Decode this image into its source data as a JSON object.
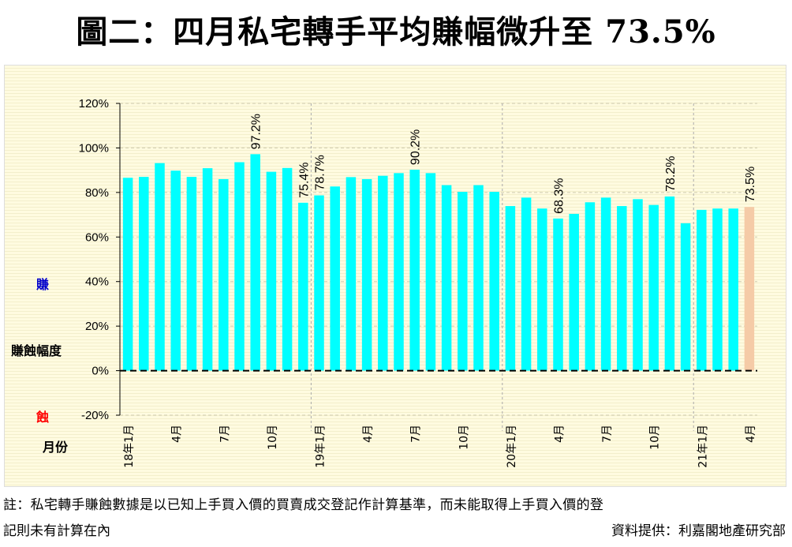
{
  "title": "圖二：四月私宅轉手平均賺幅微升至 73.5%",
  "side_labels": {
    "gain": "賺",
    "axis_title": "賺蝕幅度",
    "loss": "蝕",
    "month_label": "月份"
  },
  "colors": {
    "bar": "#00ffff",
    "highlight": "#f5cba7",
    "gain": "#0000cc",
    "loss": "#ff0000"
  },
  "footnote": {
    "line1": "註：私宅轉手賺蝕數據是以已知上手買入價的買賣成交登記作計算基準，而未能取得上手買入價的登",
    "line2": "記則未有計算在內",
    "source": "資料提供：利嘉閣地產研究部"
  },
  "chart_data": {
    "type": "bar",
    "ylim": [
      -20,
      120
    ],
    "yticks": [
      -20,
      0,
      20,
      40,
      60,
      80,
      100,
      120
    ],
    "ytick_labels": [
      "-20%",
      "0%",
      "20%",
      "40%",
      "60%",
      "80%",
      "100%",
      "120%"
    ],
    "xtick_labels": [
      "18年1月",
      "",
      "",
      "4月",
      "",
      "",
      "7月",
      "",
      "",
      "10月",
      "",
      "",
      "19年1月",
      "",
      "",
      "4月",
      "",
      "",
      "7月",
      "",
      "",
      "10月",
      "",
      "",
      "20年1月",
      "",
      "",
      "4月",
      "",
      "",
      "7月",
      "",
      "",
      "10月",
      "",
      "",
      "21年1月",
      "",
      "",
      "4月"
    ],
    "values": [
      86.6,
      87,
      93.2,
      89.8,
      87,
      90.9,
      86,
      93.6,
      97.2,
      89.3,
      91,
      75.4,
      78.7,
      82.7,
      86.9,
      86,
      87.5,
      88.7,
      90.2,
      88.7,
      83.3,
      80.3,
      83.3,
      80.3,
      73.9,
      77.7,
      72.8,
      68.3,
      70.4,
      75.6,
      77.7,
      73.9,
      77,
      74.4,
      78.2,
      66.2,
      72.2,
      72.8,
      72.8,
      73.5
    ],
    "data_labels": {
      "8": "97.2%",
      "11": "75.4%",
      "12": "78.7%",
      "18": "90.2%",
      "27": "68.3%",
      "34": "78.2%",
      "39": "73.5%"
    },
    "highlight_index": 39,
    "grid": true
  }
}
